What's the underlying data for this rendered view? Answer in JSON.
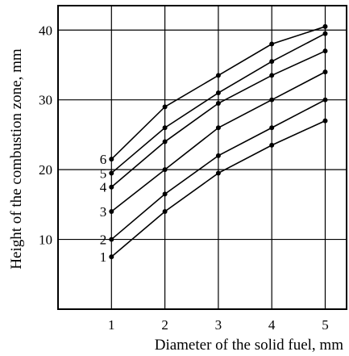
{
  "chart_data": {
    "type": "line",
    "title": "",
    "xlabel": "Diameter of the solid fuel, mm",
    "ylabel": "Height of the combustion zone, mm",
    "x": [
      1,
      2,
      3,
      4,
      5
    ],
    "xlim": [
      0,
      5.4
    ],
    "ylim": [
      0,
      43.5
    ],
    "xticks": [
      "1",
      "2",
      "3",
      "4",
      "5"
    ],
    "yticks": [
      "10",
      "20",
      "30",
      "40"
    ],
    "grid": true,
    "legend": "none",
    "series": [
      {
        "name": "1",
        "values": [
          7.5,
          14,
          19.5,
          23.5,
          27
        ]
      },
      {
        "name": "2",
        "values": [
          10,
          16.5,
          22,
          26,
          30
        ]
      },
      {
        "name": "3",
        "values": [
          14,
          20,
          26,
          30,
          34
        ]
      },
      {
        "name": "4",
        "values": [
          17.5,
          24,
          29.5,
          33.5,
          37
        ]
      },
      {
        "name": "5",
        "values": [
          19.5,
          26,
          31,
          35.5,
          39.5
        ]
      },
      {
        "name": "6",
        "values": [
          21.5,
          29,
          33.5,
          38,
          40.5
        ]
      }
    ]
  }
}
